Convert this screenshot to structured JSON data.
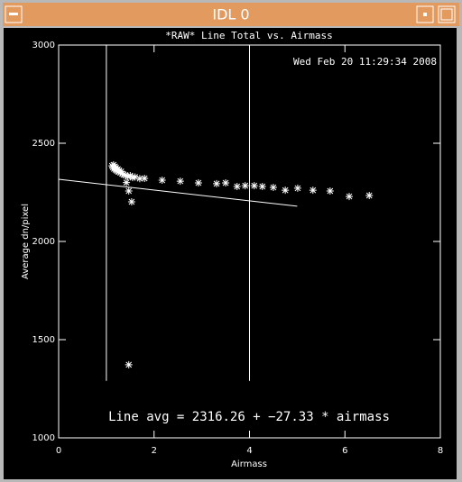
{
  "window": {
    "title": "IDL 0"
  },
  "chart_data": {
    "type": "scatter",
    "title": "*RAW* Line Total vs. Airmass",
    "timestamp": "Wed Feb 20 11:29:34 2008",
    "xlabel": "Airmass",
    "ylabel": "Average dn/pixel",
    "annotation": "Line avg = 2316.26 + −27.33 * airmass",
    "xlim": [
      0,
      8
    ],
    "ylim": [
      1000,
      3000
    ],
    "xticks": [
      0,
      2,
      4,
      6,
      8
    ],
    "yticks": [
      1000,
      1500,
      2000,
      2500,
      3000
    ],
    "color": "#ffffff",
    "x": [
      1.12,
      1.14,
      1.15,
      1.16,
      1.18,
      1.19,
      1.2,
      1.22,
      1.24,
      1.25,
      1.27,
      1.29,
      1.31,
      1.33,
      1.36,
      1.4,
      1.45,
      1.5,
      1.55,
      1.6,
      1.7,
      1.42,
      1.47,
      1.53,
      1.47,
      1.8,
      2.17,
      2.55,
      2.93,
      3.31,
      3.5,
      3.74,
      3.91,
      4.1,
      4.27,
      4.5,
      4.75,
      5.01,
      5.33,
      5.69,
      6.09,
      6.51
    ],
    "values": [
      2385,
      2378,
      2390,
      2370,
      2382,
      2365,
      2375,
      2360,
      2368,
      2355,
      2362,
      2350,
      2356,
      2345,
      2340,
      2338,
      2330,
      2335,
      2325,
      2328,
      2320,
      2300,
      2257,
      2202,
      1372,
      2321,
      2312,
      2307,
      2298,
      2294,
      2298,
      2280,
      2284,
      2284,
      2280,
      2275,
      2261,
      2271,
      2261,
      2257,
      2229,
      2234
    ],
    "fit_line": {
      "x": [
        0,
        5
      ],
      "values": [
        2316.26,
        2179.61
      ]
    },
    "vertical_lines": {
      "x": [
        1,
        4
      ],
      "ylim": [
        1290,
        3000
      ]
    }
  }
}
